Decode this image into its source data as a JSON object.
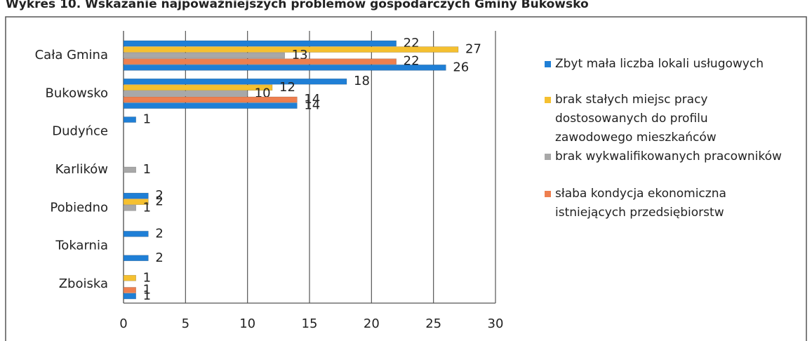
{
  "chart_data": {
    "type": "bar",
    "orientation": "horizontal",
    "title": "Wykres 10. Wskazanie najpoważniejszych problemów gospodarczych Gminy Bukowsko",
    "categories": [
      "Cała Gmina",
      "Bukowsko",
      "Dudyńce",
      "Karlików",
      "Pobiedno",
      "Tokarnia",
      "Zboiska"
    ],
    "series": [
      {
        "name": "Zbyt mała liczba lokali usługowych",
        "color": "#1f7fd6",
        "values": [
          22,
          18,
          1,
          null,
          2,
          2,
          null
        ]
      },
      {
        "name": "brak stałych miejsc pracy dostosowanych do profilu zawodowego mieszkańców",
        "color": "#f5c030",
        "values": [
          27,
          12,
          null,
          null,
          2,
          null,
          1
        ]
      },
      {
        "name": "brak wykwalifikowanych pracowników",
        "color": "#a8a8a8",
        "values": [
          13,
          10,
          null,
          1,
          1,
          null,
          null
        ]
      },
      {
        "name": "słaba kondycja ekonomiczna istniejących przedsiębiorstw",
        "color": "#ee7f4f",
        "values": [
          22,
          14,
          null,
          null,
          null,
          null,
          1
        ]
      },
      {
        "color": "#1f7fd6",
        "values": [
          26,
          14,
          null,
          null,
          null,
          2,
          1
        ]
      }
    ],
    "xlim": [
      0,
      30
    ],
    "xticks": [
      0,
      5,
      10,
      15,
      20,
      25,
      30
    ],
    "grid": true
  }
}
